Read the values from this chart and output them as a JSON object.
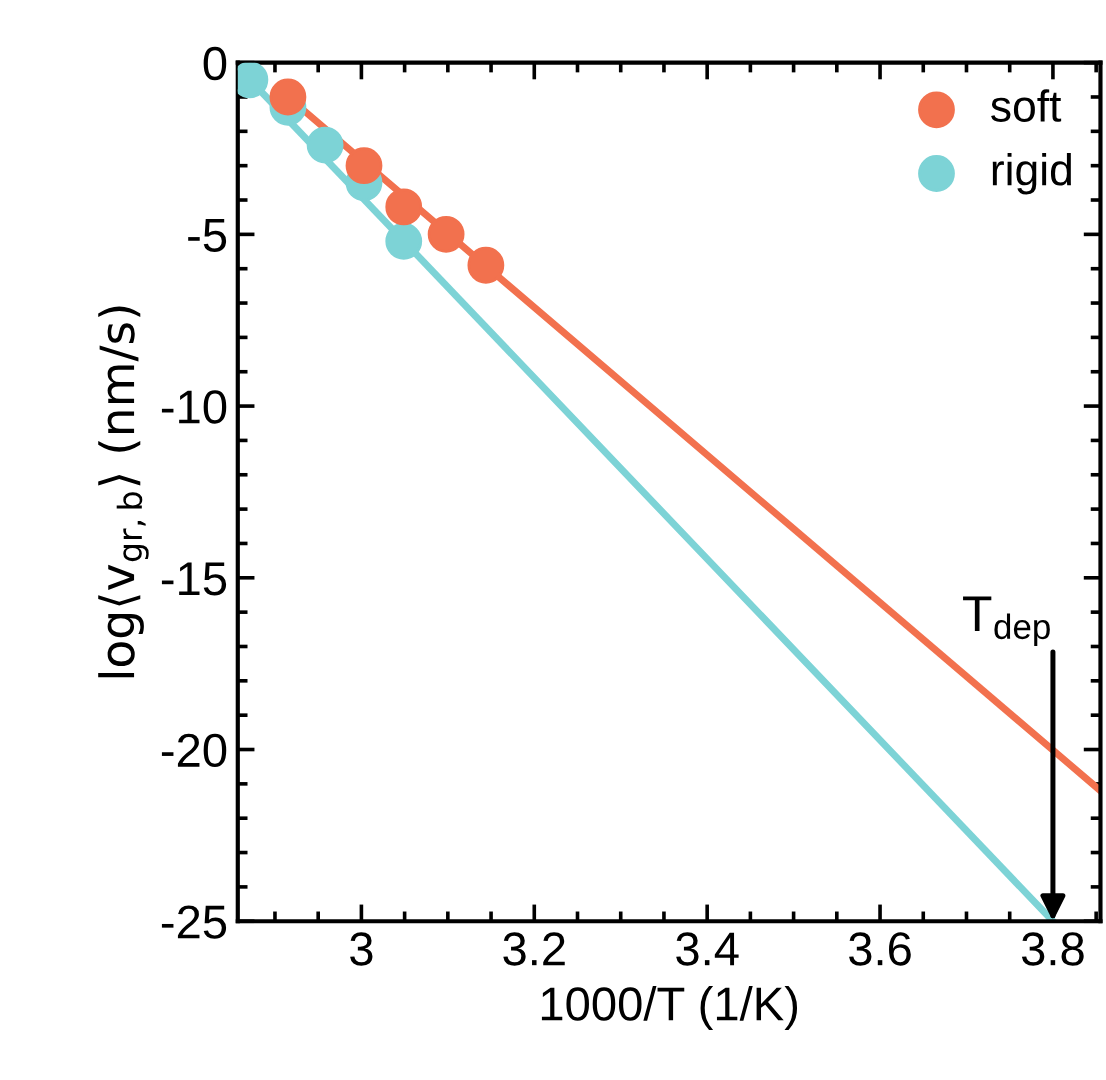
{
  "chart_data": {
    "type": "scatter",
    "xlabel": "1000/T (1/K)",
    "ylabel": "log⟨v$_{gr,b}$⟩ (nm/s)",
    "xlim": [
      2.857,
      3.855
    ],
    "ylim": [
      -25,
      0
    ],
    "xticks": [
      3,
      3.2,
      3.4,
      3.6,
      3.8
    ],
    "yticks": [
      -25,
      -20,
      -15,
      -10,
      -5,
      0
    ],
    "legend": "top right",
    "marker": "circle",
    "grid": false,
    "series": [
      {
        "name": "soft",
        "color": "#f2714e",
        "x": [
          2.915,
          3.003,
          3.049,
          3.098,
          3.144
        ],
        "values": [
          -1.0,
          -3.0,
          -4.2,
          -5.0,
          -5.9
        ]
      },
      {
        "name": "rigid",
        "color": "#7dd3d6",
        "x": [
          2.871,
          2.915,
          2.958,
          3.003,
          3.049
        ],
        "values": [
          -0.5,
          -1.3,
          -2.4,
          -3.5,
          -5.2
        ]
      },
      {
        "type": "line",
        "color": "#f2714e",
        "x": [
          2.915,
          3.855
        ],
        "values": [
          -1.0,
          -21.2
        ],
        "marker": "none"
      },
      {
        "type": "line",
        "color": "#7dd3d6",
        "x": [
          2.871,
          3.8
        ],
        "values": [
          -0.5,
          -25
        ],
        "marker": "none"
      }
    ],
    "annotations": [
      {
        "text": "T$_{dep}$",
        "x": 3.8,
        "y": -25
      }
    ]
  }
}
